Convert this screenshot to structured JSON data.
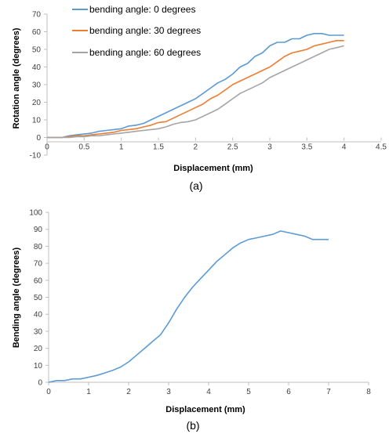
{
  "chart_data": [
    {
      "type": "line",
      "panel_label": "(a)",
      "xlabel": "Displacement (mm)",
      "ylabel": "Rotation angle (degrees)",
      "xlim": [
        0,
        4.5
      ],
      "ylim": [
        -10,
        70
      ],
      "xticks": [
        "0",
        "0.5",
        "1",
        "1.5",
        "2",
        "2.5",
        "3",
        "3.5",
        "4",
        "4.5"
      ],
      "yticks": [
        "-10",
        "0",
        "10",
        "20",
        "30",
        "40",
        "50",
        "60",
        "70"
      ],
      "grid": false,
      "legend_position": "top-left",
      "series": [
        {
          "name": "bending angle: 0 degrees",
          "color": "#5b9bd5",
          "x": [
            0,
            0.2,
            0.3,
            0.4,
            0.5,
            0.6,
            0.7,
            0.8,
            0.9,
            1.0,
            1.1,
            1.2,
            1.3,
            1.4,
            1.5,
            1.6,
            1.7,
            1.8,
            1.9,
            2.0,
            2.1,
            2.2,
            2.3,
            2.4,
            2.5,
            2.6,
            2.7,
            2.8,
            2.9,
            3.0,
            3.1,
            3.2,
            3.3,
            3.4,
            3.5,
            3.6,
            3.7,
            3.8,
            3.9,
            4.0
          ],
          "y": [
            0,
            0,
            1,
            1.5,
            2,
            2.5,
            3.5,
            4,
            4.5,
            5,
            6.5,
            7,
            8,
            10,
            12,
            14,
            16,
            18,
            20,
            22,
            25,
            28,
            31,
            33,
            36,
            40,
            42,
            46,
            48,
            52,
            54,
            54,
            56,
            56,
            58,
            59,
            59,
            58,
            58,
            58
          ]
        },
        {
          "name": "bending angle: 30 degrees",
          "color": "#ed7d31",
          "x": [
            0,
            0.2,
            0.3,
            0.4,
            0.5,
            0.6,
            0.7,
            0.8,
            0.9,
            1.0,
            1.1,
            1.2,
            1.3,
            1.4,
            1.5,
            1.6,
            1.7,
            1.8,
            1.9,
            2.0,
            2.1,
            2.2,
            2.3,
            2.4,
            2.5,
            2.6,
            2.7,
            2.8,
            2.9,
            3.0,
            3.1,
            3.2,
            3.3,
            3.4,
            3.5,
            3.6,
            3.7,
            3.8,
            3.9,
            4.0
          ],
          "y": [
            0,
            0,
            0.5,
            1,
            1,
            1.5,
            2,
            2.5,
            3,
            4,
            4.5,
            5,
            6,
            7,
            8.5,
            9,
            11,
            13,
            15,
            17,
            19,
            22,
            24,
            27,
            30,
            32,
            34,
            36,
            38,
            40,
            43,
            46,
            48,
            49,
            50,
            52,
            53,
            54,
            55,
            55
          ]
        },
        {
          "name": "bending angle: 60 degrees",
          "color": "#a5a5a5",
          "x": [
            0,
            0.2,
            0.3,
            0.4,
            0.5,
            0.6,
            0.7,
            0.8,
            0.9,
            1.0,
            1.1,
            1.2,
            1.3,
            1.4,
            1.5,
            1.6,
            1.7,
            1.8,
            1.9,
            2.0,
            2.1,
            2.2,
            2.3,
            2.4,
            2.5,
            2.6,
            2.7,
            2.8,
            2.9,
            3.0,
            3.1,
            3.2,
            3.3,
            3.4,
            3.5,
            3.6,
            3.7,
            3.8,
            3.9,
            4.0
          ],
          "y": [
            0,
            0,
            0,
            0.5,
            0.5,
            1,
            1,
            1.5,
            2,
            2.5,
            3,
            3.5,
            4,
            4.5,
            5,
            6,
            7.5,
            8.5,
            9,
            10,
            12,
            14,
            16,
            19,
            22,
            25,
            27,
            29,
            31,
            34,
            36,
            38,
            40,
            42,
            44,
            46,
            48,
            50,
            51,
            52
          ]
        }
      ]
    },
    {
      "type": "line",
      "panel_label": "(b)",
      "xlabel": "Displacement (mm)",
      "ylabel": "Bending angle (degrees)",
      "xlim": [
        0,
        8
      ],
      "ylim": [
        0,
        100
      ],
      "xticks": [
        "0",
        "1",
        "2",
        "3",
        "4",
        "5",
        "6",
        "7",
        "8"
      ],
      "yticks": [
        "0",
        "10",
        "20",
        "30",
        "40",
        "50",
        "60",
        "70",
        "80",
        "90",
        "100"
      ],
      "grid": false,
      "series": [
        {
          "color": "#5b9bd5",
          "x": [
            0,
            0.2,
            0.4,
            0.6,
            0.8,
            1.0,
            1.2,
            1.4,
            1.6,
            1.8,
            2.0,
            2.2,
            2.4,
            2.6,
            2.8,
            3.0,
            3.2,
            3.4,
            3.6,
            3.8,
            4.0,
            4.2,
            4.4,
            4.6,
            4.8,
            5.0,
            5.2,
            5.4,
            5.6,
            5.8,
            6.0,
            6.2,
            6.4,
            6.6,
            6.8,
            7.0
          ],
          "y": [
            0,
            1,
            1,
            2,
            2,
            3,
            4,
            5.5,
            7,
            9,
            12,
            16,
            20,
            24,
            28,
            35,
            43,
            50,
            56,
            61,
            66,
            71,
            75,
            79,
            82,
            84,
            85,
            86,
            87,
            89,
            88,
            87,
            86,
            84,
            84,
            84
          ]
        }
      ]
    }
  ]
}
